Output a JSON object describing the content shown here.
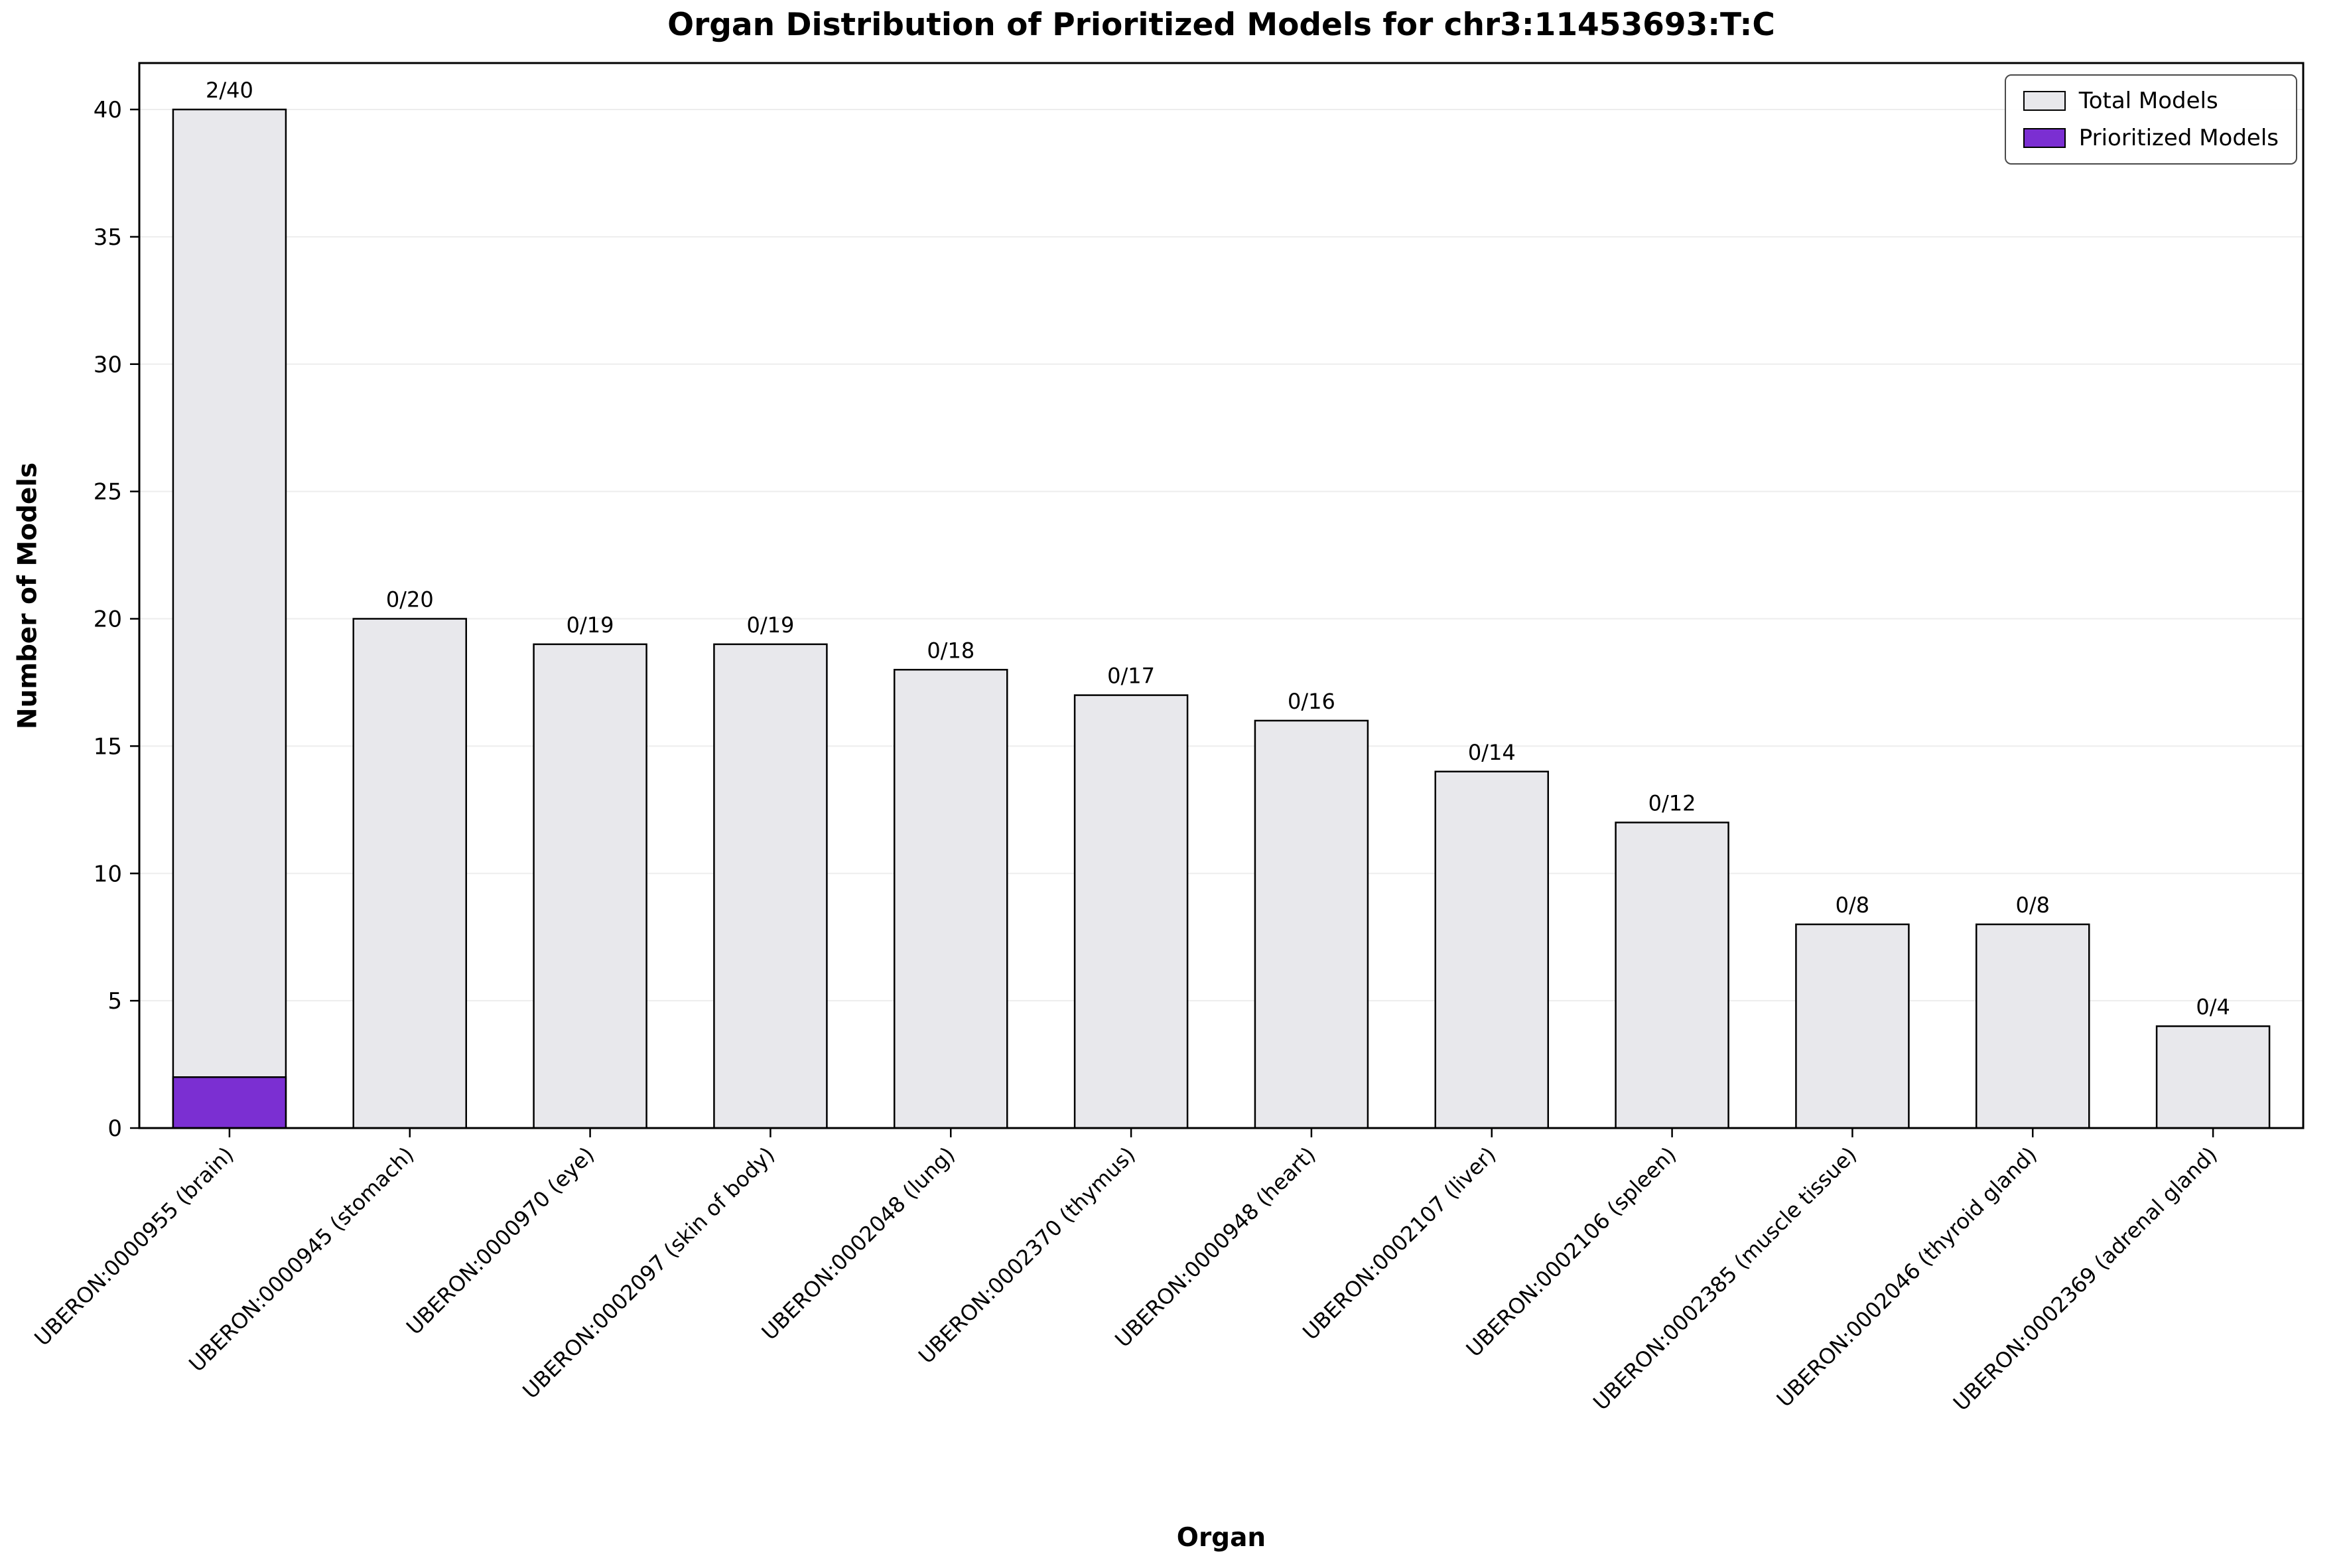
{
  "colors": {
    "total": "#e8e8ec",
    "prioritized": "#7b2fd2",
    "edge": "#000000",
    "grid": "#ededed",
    "background": "#ffffff"
  },
  "legend": {
    "items": [
      {
        "label": "Total Models",
        "swatch": "total-swatch"
      },
      {
        "label": "Prioritized Models",
        "swatch": "prioritized-swatch"
      }
    ],
    "position": "upper right"
  },
  "chart_data": {
    "type": "bar",
    "title": "Organ Distribution of Prioritized Models for chr3:11453693:T:C",
    "xlabel": "Organ",
    "ylabel": "Number of Models",
    "ylim": [
      0,
      41.8
    ],
    "yticks": [
      0,
      5,
      10,
      15,
      20,
      25,
      30,
      35,
      40
    ],
    "grid": true,
    "legend_position": "upper right",
    "categories": [
      "UBERON:0000955 (brain)",
      "UBERON:0000945 (stomach)",
      "UBERON:0000970 (eye)",
      "UBERON:0002097 (skin of body)",
      "UBERON:0002048 (lung)",
      "UBERON:0002370 (thymus)",
      "UBERON:0000948 (heart)",
      "UBERON:0002107 (liver)",
      "UBERON:0002106 (spleen)",
      "UBERON:0002385 (muscle tissue)",
      "UBERON:0002046 (thyroid gland)",
      "UBERON:0002369 (adrenal gland)"
    ],
    "series": [
      {
        "name": "Total Models",
        "values": [
          40,
          20,
          19,
          19,
          18,
          17,
          16,
          14,
          12,
          8,
          8,
          4
        ]
      },
      {
        "name": "Prioritized Models",
        "values": [
          2,
          0,
          0,
          0,
          0,
          0,
          0,
          0,
          0,
          0,
          0,
          0
        ]
      }
    ],
    "annotations": [
      "2/40",
      "0/20",
      "0/19",
      "0/19",
      "0/18",
      "0/17",
      "0/16",
      "0/14",
      "0/12",
      "0/8",
      "0/8",
      "0/4"
    ]
  }
}
